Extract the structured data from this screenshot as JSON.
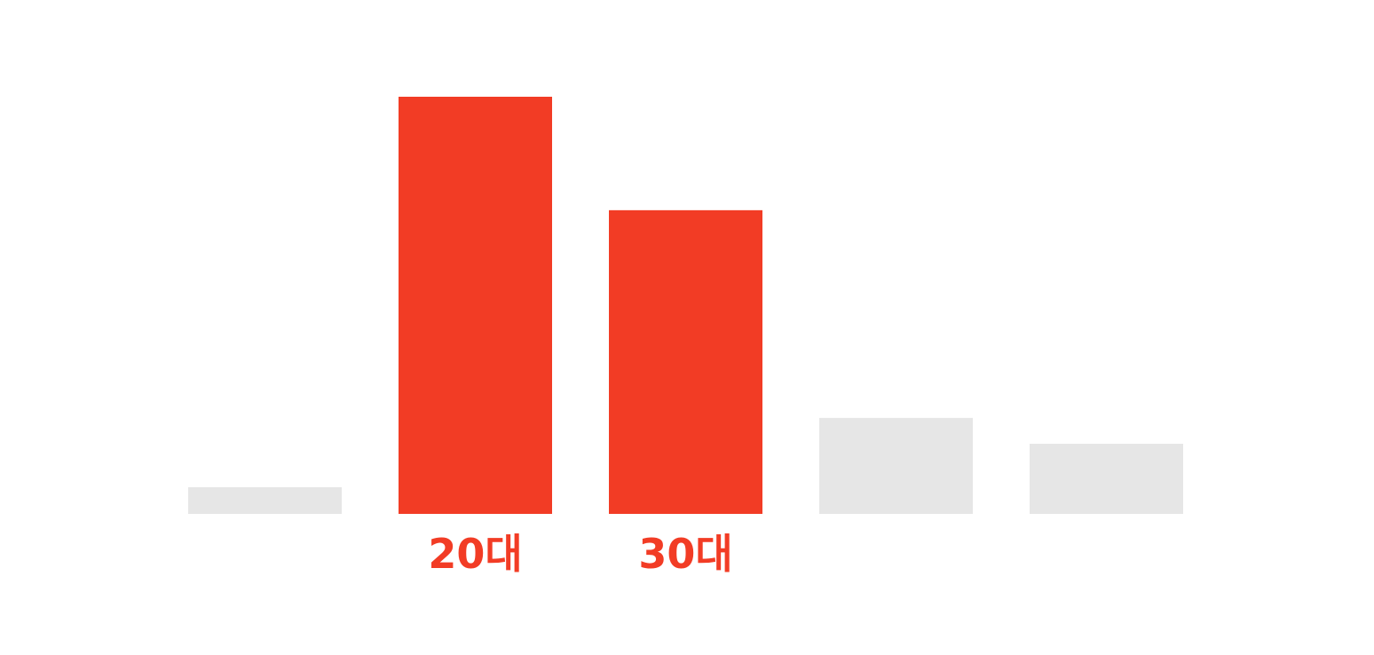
{
  "chart_data": {
    "type": "bar",
    "categories": [
      "",
      "20대",
      "30대",
      "",
      ""
    ],
    "values": [
      6.4,
      100,
      72.8,
      23.0,
      16.8
    ],
    "highlighted": [
      false,
      true,
      true,
      false,
      false
    ],
    "ylim": [
      0,
      100
    ],
    "title": "",
    "xlabel": "",
    "ylabel": "",
    "grid": false,
    "legend": "none"
  },
  "colors": {
    "highlight": "#f23c25",
    "muted": "#e6e6e6",
    "background": "#ffffff"
  }
}
